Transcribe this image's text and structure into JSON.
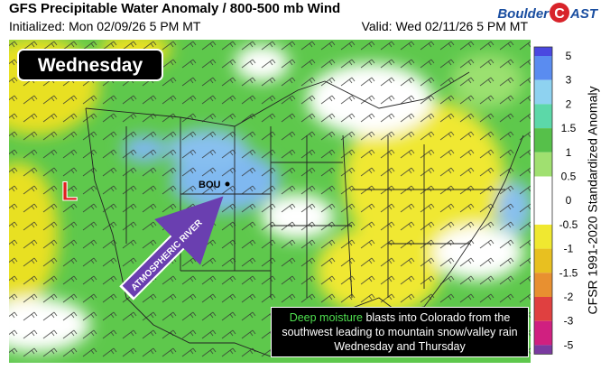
{
  "header": {
    "title": "GFS Precipitable Water Anomaly / 800-500 mb Wind",
    "initialized": "Initialized: Mon 02/09/26 5 PM MT",
    "valid": "Valid: Wed 02/11/26 5 PM MT"
  },
  "logo": {
    "left": "Boulder",
    "letter": "C",
    "right": "AST"
  },
  "map": {
    "day_label": "Wednesday",
    "low_label": "L",
    "station": "BOU",
    "arrow_label": "ATMOSPHERIC RIVER",
    "caption": {
      "highlight": "Deep moisture",
      "text": "blasts into Colorado from the southwest leading to mountain snow/valley rain Wednesday and Thursday"
    }
  },
  "colorbar": {
    "label": "CFSR 1991-2020 Standardized Anomaly",
    "ticks": [
      "5",
      "3",
      "2",
      "1.5",
      "1",
      "0.5",
      "0",
      "-0.5",
      "-1",
      "-1.5",
      "-2",
      "-3",
      "-5"
    ]
  }
}
